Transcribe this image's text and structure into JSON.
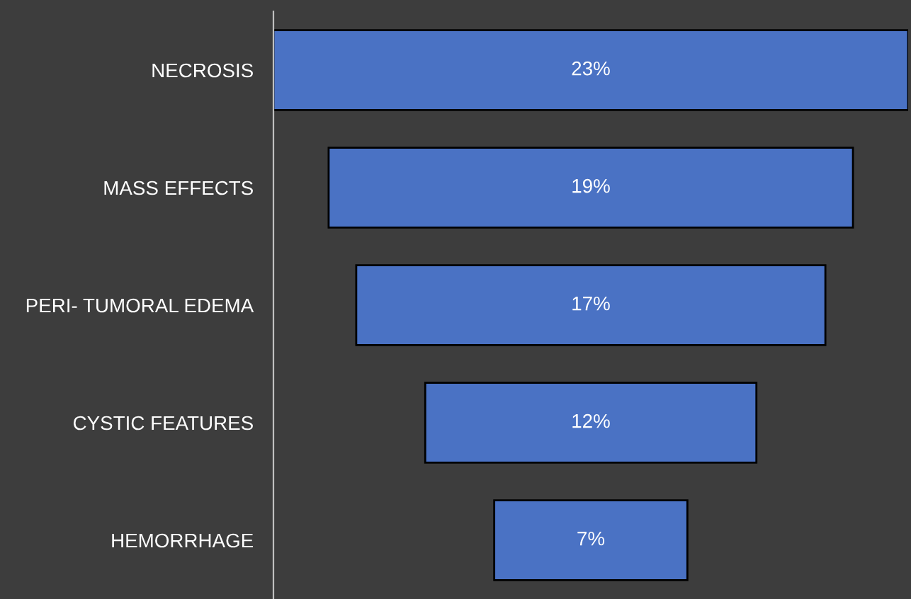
{
  "chart_data": {
    "type": "other",
    "categories": [
      "NECROSIS",
      "MASS EFFECTS",
      "PERI- TUMORAL EDEMA",
      "CYSTIC FEATURES",
      "HEMORRHAGE"
    ],
    "values": [
      23,
      19,
      17,
      12,
      7
    ],
    "value_labels": [
      "23%",
      "19%",
      "17%",
      "12%",
      "7%"
    ],
    "color": "#4a72c4"
  }
}
